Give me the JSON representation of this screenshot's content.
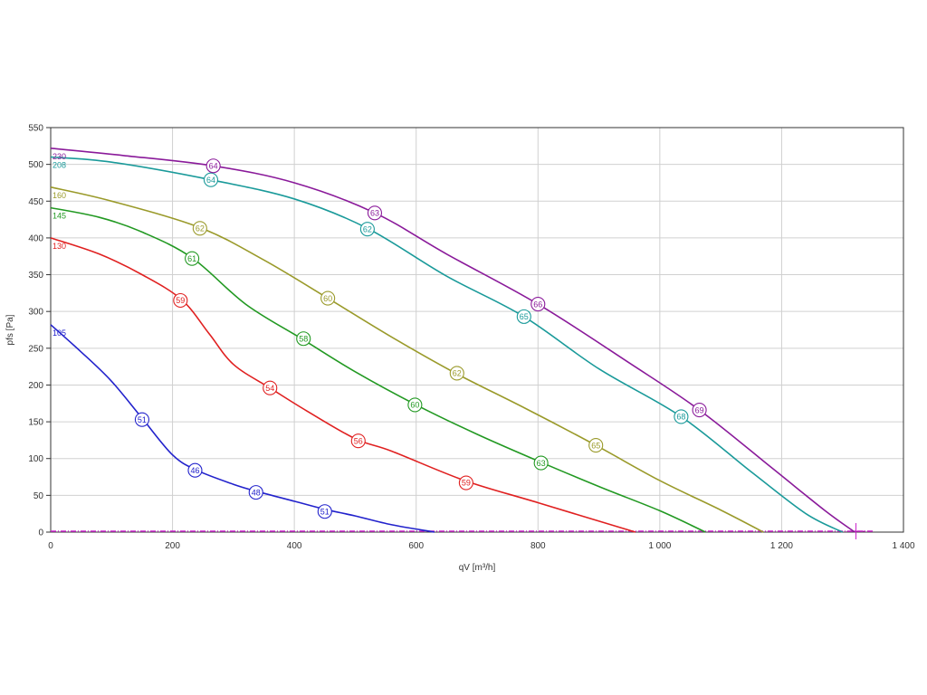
{
  "chart_data": {
    "type": "line",
    "xlabel": "qV [m³/h]",
    "ylabel": "pfs [Pa]",
    "xlim": [
      0,
      1400
    ],
    "ylim": [
      0,
      550
    ],
    "x_ticks": [
      0,
      200,
      400,
      600,
      800,
      1000,
      1200,
      1400
    ],
    "x_tick_labels": [
      "0",
      "200",
      "400",
      "600",
      "800",
      "1 000",
      "1 200",
      "1 400"
    ],
    "y_ticks": [
      0,
      50,
      100,
      150,
      200,
      250,
      300,
      350,
      400,
      450,
      500,
      550
    ],
    "y_tick_labels": [
      "0",
      "50",
      "100",
      "150",
      "200",
      "250",
      "300",
      "350",
      "400",
      "450",
      "500",
      "550"
    ],
    "grid": true,
    "series": [
      {
        "name": "105",
        "color": "#2222cc",
        "points": [
          [
            0,
            282
          ],
          [
            50,
            245
          ],
          [
            100,
            205
          ],
          [
            150,
            155
          ],
          [
            200,
            105
          ],
          [
            240,
            84
          ],
          [
            300,
            65
          ],
          [
            340,
            55
          ],
          [
            400,
            42
          ],
          [
            450,
            31
          ],
          [
            500,
            22
          ],
          [
            560,
            10
          ],
          [
            630,
            0
          ]
        ],
        "markers": [
          {
            "x": 150,
            "y": 153,
            "label": "51"
          },
          {
            "x": 237,
            "y": 84,
            "label": "46"
          },
          {
            "x": 337,
            "y": 54,
            "label": "48"
          },
          {
            "x": 450,
            "y": 28,
            "label": "51"
          }
        ]
      },
      {
        "name": "130",
        "color": "#e02020",
        "points": [
          [
            0,
            400
          ],
          [
            80,
            378
          ],
          [
            150,
            350
          ],
          [
            215,
            316
          ],
          [
            260,
            270
          ],
          [
            300,
            228
          ],
          [
            360,
            196
          ],
          [
            420,
            165
          ],
          [
            500,
            127
          ],
          [
            560,
            110
          ],
          [
            680,
            70
          ],
          [
            800,
            40
          ],
          [
            960,
            0
          ]
        ],
        "markers": [
          {
            "x": 213,
            "y": 315,
            "label": "59"
          },
          {
            "x": 360,
            "y": 196,
            "label": "54"
          },
          {
            "x": 505,
            "y": 124,
            "label": "56"
          },
          {
            "x": 682,
            "y": 67,
            "label": "59"
          }
        ]
      },
      {
        "name": "145",
        "color": "#229922",
        "points": [
          [
            0,
            441
          ],
          [
            80,
            428
          ],
          [
            150,
            408
          ],
          [
            232,
            373
          ],
          [
            320,
            310
          ],
          [
            412,
            263
          ],
          [
            500,
            218
          ],
          [
            600,
            173
          ],
          [
            700,
            133
          ],
          [
            805,
            95
          ],
          [
            900,
            62
          ],
          [
            1000,
            29
          ],
          [
            1075,
            0
          ]
        ],
        "markers": [
          {
            "x": 232,
            "y": 372,
            "label": "61"
          },
          {
            "x": 415,
            "y": 263,
            "label": "58"
          },
          {
            "x": 598,
            "y": 173,
            "label": "60"
          },
          {
            "x": 805,
            "y": 94,
            "label": "63"
          }
        ]
      },
      {
        "name": "160",
        "color": "#9a9a2a",
        "points": [
          [
            0,
            469
          ],
          [
            100,
            450
          ],
          [
            245,
            414
          ],
          [
            350,
            370
          ],
          [
            455,
            318
          ],
          [
            560,
            265
          ],
          [
            665,
            216
          ],
          [
            780,
            168
          ],
          [
            895,
            118
          ],
          [
            1000,
            70
          ],
          [
            1100,
            30
          ],
          [
            1170,
            0
          ]
        ],
        "markers": [
          {
            "x": 245,
            "y": 413,
            "label": "62"
          },
          {
            "x": 455,
            "y": 318,
            "label": "60"
          },
          {
            "x": 667,
            "y": 216,
            "label": "62"
          },
          {
            "x": 895,
            "y": 118,
            "label": "65"
          }
        ]
      },
      {
        "name": "208",
        "color": "#1a9a9a",
        "points": [
          [
            0,
            510
          ],
          [
            100,
            503
          ],
          [
            263,
            479
          ],
          [
            400,
            453
          ],
          [
            520,
            413
          ],
          [
            650,
            348
          ],
          [
            777,
            293
          ],
          [
            900,
            222
          ],
          [
            1035,
            157
          ],
          [
            1150,
            82
          ],
          [
            1240,
            25
          ],
          [
            1300,
            0
          ]
        ],
        "markers": [
          {
            "x": 263,
            "y": 479,
            "label": "64"
          },
          {
            "x": 520,
            "y": 412,
            "label": "62"
          },
          {
            "x": 777,
            "y": 293,
            "label": "65"
          },
          {
            "x": 1035,
            "y": 157,
            "label": "68"
          }
        ]
      },
      {
        "name": "230",
        "color": "#8a1a9a",
        "points": [
          [
            0,
            522
          ],
          [
            120,
            512
          ],
          [
            267,
            498
          ],
          [
            400,
            475
          ],
          [
            532,
            434
          ],
          [
            650,
            378
          ],
          [
            800,
            310
          ],
          [
            950,
            230
          ],
          [
            1065,
            166
          ],
          [
            1180,
            90
          ],
          [
            1270,
            30
          ],
          [
            1320,
            0
          ]
        ],
        "markers": [
          {
            "x": 267,
            "y": 498,
            "label": "64"
          },
          {
            "x": 532,
            "y": 434,
            "label": "63"
          },
          {
            "x": 800,
            "y": 310,
            "label": "66"
          },
          {
            "x": 1065,
            "y": 166,
            "label": "69"
          }
        ]
      }
    ]
  }
}
